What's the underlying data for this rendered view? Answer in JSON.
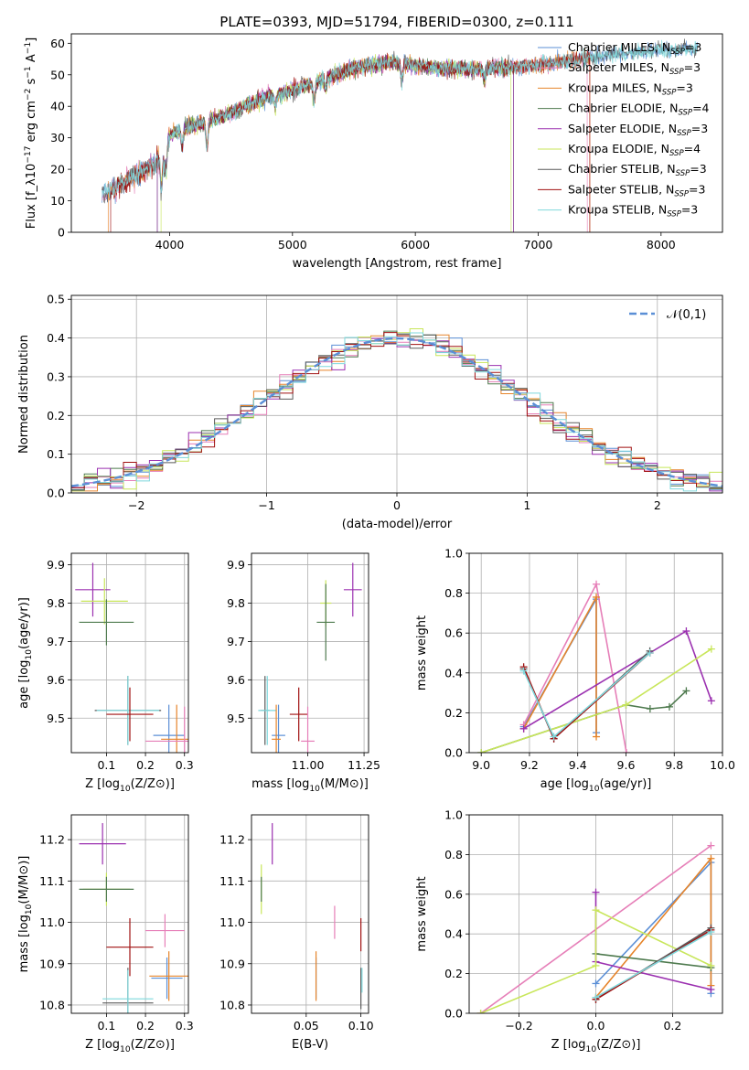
{
  "figure": {
    "title": "PLATE=0393, MJD=51794, FIBERID=0300, z=0.111"
  },
  "colors": {
    "Chabrier MILES": "#5b8fd6",
    "Salpeter MILES": "#e67fb8",
    "Kroupa MILES": "#e6842a",
    "Chabrier ELODIE": "#4e7a4e",
    "Salpeter ELODIE": "#9b30b0",
    "Kroupa ELODIE": "#c8e65a",
    "Chabrier STELIB": "#5a5a5a",
    "Salpeter STELIB": "#a01010",
    "Kroupa STELIB": "#7fd8dc",
    "gaussian": "#5b8fd6",
    "grid": "#b0b0b0"
  },
  "chart_data": [
    {
      "id": "spectrum",
      "type": "line",
      "title": "PLATE=0393, MJD=51794, FIBERID=0300, z=0.111",
      "xlabel": "wavelength [Angstrom, rest frame]",
      "ylabel": "Flux [f_λ10^-17 erg cm^-2 s^-1 A^-1]",
      "xlim": [
        3200,
        8500
      ],
      "ylim": [
        0,
        63
      ],
      "xticks": [
        4000,
        5000,
        6000,
        7000,
        8000
      ],
      "yticks": [
        0,
        10,
        20,
        30,
        40,
        50,
        60
      ],
      "grid": false,
      "legend_position": "upper-right",
      "continuum": {
        "x": [
          3450,
          3600,
          3800,
          3950,
          4000,
          4100,
          4300,
          4500,
          4800,
          5000,
          5200,
          5500,
          5800,
          6000,
          6200,
          6500,
          7000,
          7500,
          8000,
          8300
        ],
        "y": [
          12,
          15,
          20,
          24,
          31,
          33,
          35,
          38,
          43,
          45,
          48,
          52,
          54,
          53,
          52,
          52,
          53,
          56,
          58,
          58
        ]
      },
      "series": [
        {
          "name": "Chabrier MILES",
          "label": "Chabrier MILES, N",
          "sub": "SSP",
          "suffix": "=3",
          "xrange": [
            3450,
            8300
          ]
        },
        {
          "name": "Salpeter MILES",
          "label": "Salpeter MILES, N",
          "sub": "SSP",
          "suffix": "=3",
          "xrange": [
            3450,
            7400
          ]
        },
        {
          "name": "Kroupa MILES",
          "label": "Kroupa MILES, N",
          "sub": "SSP",
          "suffix": "=3",
          "xrange": [
            3500,
            7420
          ]
        },
        {
          "name": "Chabrier ELODIE",
          "label": "Chabrier ELODIE, N",
          "sub": "SSP",
          "suffix": "=4",
          "xrange": [
            3900,
            6800
          ]
        },
        {
          "name": "Salpeter ELODIE",
          "label": "Salpeter ELODIE, N",
          "sub": "SSP",
          "suffix": "=3",
          "xrange": [
            3900,
            6800
          ]
        },
        {
          "name": "Kroupa ELODIE",
          "label": "Kroupa ELODIE, N",
          "sub": "SSP",
          "suffix": "=4",
          "xrange": [
            3930,
            6780
          ]
        },
        {
          "name": "Chabrier STELIB",
          "label": "Chabrier STELIB, N",
          "sub": "SSP",
          "suffix": "=3",
          "xrange": [
            3450,
            8300
          ]
        },
        {
          "name": "Salpeter STELIB",
          "label": "Salpeter STELIB, N",
          "sub": "SSP",
          "suffix": "=3",
          "xrange": [
            3520,
            7420
          ]
        },
        {
          "name": "Kroupa STELIB",
          "label": "Kroupa STELIB, N",
          "sub": "SSP",
          "suffix": "=3",
          "xrange": [
            3450,
            8300
          ]
        }
      ]
    },
    {
      "id": "residuals",
      "type": "histogram",
      "xlabel": "(data-model)/error",
      "ylabel": "Normed distribution",
      "xlim": [
        -2.5,
        2.5
      ],
      "ylim": [
        0,
        0.51
      ],
      "xticks": [
        -2,
        -1,
        0,
        1,
        2
      ],
      "yticks": [
        0.0,
        0.1,
        0.2,
        0.3,
        0.4,
        0.5
      ],
      "grid": true,
      "legend_position": "upper-right",
      "bins": {
        "start": -2.5,
        "width": 0.1,
        "count": 50
      },
      "gaussian_label": "𝒩(0,1)"
    },
    {
      "id": "z-age",
      "type": "errorbar",
      "xlabel": "Z [log10(Z/Z⊙)]",
      "ylabel": "age  [log10(age/yr)]",
      "xlim": [
        0.01,
        0.31
      ],
      "ylim": [
        9.41,
        9.93
      ],
      "xticks": [
        0.1,
        0.2,
        0.3
      ],
      "yticks": [
        9.5,
        9.6,
        9.7,
        9.8,
        9.9
      ],
      "grid": true,
      "points": [
        {
          "series": "Salpeter ELODIE",
          "x": 0.065,
          "xerr": 0.045,
          "y": 9.835,
          "yerr": 0.07
        },
        {
          "series": "Kroupa ELODIE",
          "x": 0.095,
          "xerr": 0.06,
          "y": 9.805,
          "yerr": 0.06
        },
        {
          "series": "Chabrier ELODIE",
          "x": 0.1,
          "xerr": 0.07,
          "y": 9.75,
          "yerr": 0.06
        },
        {
          "series": "Chabrier STELIB",
          "x": 0.155,
          "xerr": 0.085,
          "y": 9.52,
          "yerr": 0.09
        },
        {
          "series": "Kroupa STELIB",
          "x": 0.155,
          "xerr": 0.08,
          "y": 9.52,
          "yerr": 0.09
        },
        {
          "series": "Salpeter STELIB",
          "x": 0.16,
          "xerr": 0.06,
          "y": 9.51,
          "yerr": 0.07
        },
        {
          "series": "Chabrier MILES",
          "x": 0.26,
          "xerr": 0.04,
          "y": 9.455,
          "yerr": 0.08
        },
        {
          "series": "Kroupa MILES",
          "x": 0.28,
          "xerr": 0.04,
          "y": 9.445,
          "yerr": 0.09
        },
        {
          "series": "Salpeter MILES",
          "x": 0.3,
          "xerr": 0.1,
          "y": 9.44,
          "yerr": 0.09
        }
      ]
    },
    {
      "id": "mass-age",
      "type": "errorbar",
      "xlabel": "mass [log10(M/M⊙)]",
      "ylabel": "",
      "xlim": [
        10.75,
        11.27
      ],
      "ylim": [
        9.41,
        9.93
      ],
      "xticks": [
        11.0,
        11.25
      ],
      "yticks": [
        9.5,
        9.6,
        9.7,
        9.8,
        9.9
      ],
      "grid": true,
      "points": [
        {
          "series": "Salpeter ELODIE",
          "x": 11.2,
          "xerr": 0.04,
          "y": 9.835,
          "yerr": 0.07
        },
        {
          "series": "Kroupa ELODIE",
          "x": 11.08,
          "xerr": 0.025,
          "y": 9.8,
          "yerr": 0.06
        },
        {
          "series": "Chabrier ELODIE",
          "x": 11.08,
          "xerr": 0.04,
          "y": 9.75,
          "yerr": 0.1
        },
        {
          "series": "Chabrier STELIB",
          "x": 10.81,
          "xerr": 0.02,
          "y": 9.52,
          "yerr": 0.09
        },
        {
          "series": "Kroupa STELIB",
          "x": 10.82,
          "xerr": 0.04,
          "y": 9.52,
          "yerr": 0.09
        },
        {
          "series": "Salpeter STELIB",
          "x": 10.96,
          "xerr": 0.04,
          "y": 9.51,
          "yerr": 0.07
        },
        {
          "series": "Chabrier MILES",
          "x": 10.87,
          "xerr": 0.03,
          "y": 9.455,
          "yerr": 0.08
        },
        {
          "series": "Kroupa MILES",
          "x": 10.86,
          "xerr": 0.02,
          "y": 9.445,
          "yerr": 0.09
        },
        {
          "series": "Salpeter MILES",
          "x": 11.0,
          "xerr": 0.03,
          "y": 9.44,
          "yerr": 0.09
        }
      ]
    },
    {
      "id": "age-weight",
      "type": "line",
      "xlabel": "age  [log10(age/yr)]",
      "ylabel": "mass weight",
      "xlim": [
        8.95,
        10.0
      ],
      "ylim": [
        0,
        1
      ],
      "xticks": [
        9.0,
        9.2,
        9.4,
        9.6,
        9.8,
        10.0
      ],
      "yticks": [
        0.0,
        0.2,
        0.4,
        0.6,
        0.8,
        1.0
      ],
      "grid": true,
      "series": [
        {
          "name": "Chabrier MILES",
          "x": [
            9.176,
            9.477,
            9.477
          ],
          "y": [
            0.13,
            0.77,
            0.1
          ]
        },
        {
          "name": "Salpeter MILES",
          "x": [
            9.176,
            9.477,
            9.602
          ],
          "y": [
            0.14,
            0.845,
            0.0
          ]
        },
        {
          "name": "Kroupa MILES",
          "x": [
            9.176,
            9.477,
            9.477
          ],
          "y": [
            0.12,
            0.78,
            0.08
          ]
        },
        {
          "name": "Chabrier ELODIE",
          "x": [
            9.0,
            9.6,
            9.7,
            9.78,
            9.85
          ],
          "y": [
            0.0,
            0.24,
            0.22,
            0.23,
            0.31
          ]
        },
        {
          "name": "Salpeter ELODIE",
          "x": [
            9.176,
            9.85,
            9.954
          ],
          "y": [
            0.12,
            0.61,
            0.26
          ]
        },
        {
          "name": "Kroupa ELODIE",
          "x": [
            9.0,
            9.6,
            9.954
          ],
          "y": [
            0.0,
            0.24,
            0.52
          ]
        },
        {
          "name": "Chabrier STELIB",
          "x": [
            9.176,
            9.301,
            9.699
          ],
          "y": [
            0.42,
            0.07,
            0.51
          ]
        },
        {
          "name": "Salpeter STELIB",
          "x": [
            9.176,
            9.301,
            9.699
          ],
          "y": [
            0.43,
            0.07,
            0.5
          ]
        },
        {
          "name": "Kroupa STELIB",
          "x": [
            9.176,
            9.301,
            9.699
          ],
          "y": [
            0.41,
            0.08,
            0.5
          ]
        }
      ]
    },
    {
      "id": "z-mass",
      "type": "errorbar",
      "xlabel": "Z [log10(Z/Z⊙)]",
      "ylabel": "mass [log10(M/M⊙)]",
      "xlim": [
        0.01,
        0.31
      ],
      "ylim": [
        10.78,
        11.26
      ],
      "xticks": [
        0.1,
        0.2,
        0.3
      ],
      "yticks": [
        10.8,
        10.9,
        11.0,
        11.1,
        11.2
      ],
      "grid": true,
      "points": [
        {
          "series": "Salpeter ELODIE",
          "x": 0.09,
          "xerr": 0.06,
          "y": 11.19,
          "yerr": 0.05
        },
        {
          "series": "Kroupa ELODIE",
          "x": 0.1,
          "xerr": 0.06,
          "y": 11.08,
          "yerr": 0.04
        },
        {
          "series": "Chabrier ELODIE",
          "x": 0.1,
          "xerr": 0.07,
          "y": 11.08,
          "yerr": 0.03
        },
        {
          "series": "Salpeter STELIB",
          "x": 0.16,
          "xerr": 0.06,
          "y": 10.94,
          "yerr": 0.07
        },
        {
          "series": "Chabrier STELIB",
          "x": 0.155,
          "xerr": 0.065,
          "y": 10.805,
          "yerr": 0.085
        },
        {
          "series": "Kroupa STELIB",
          "x": 0.155,
          "xerr": 0.065,
          "y": 10.815,
          "yerr": 0.07
        },
        {
          "series": "Chabrier MILES",
          "x": 0.255,
          "xerr": 0.04,
          "y": 10.865,
          "yerr": 0.05
        },
        {
          "series": "Kroupa MILES",
          "x": 0.26,
          "xerr": 0.05,
          "y": 10.87,
          "yerr": 0.06
        },
        {
          "series": "Salpeter MILES",
          "x": 0.25,
          "xerr": 0.05,
          "y": 10.98,
          "yerr": 0.04
        }
      ]
    },
    {
      "id": "ebv-mass",
      "type": "errorbar",
      "xlabel": "E(B-V)",
      "ylabel": "",
      "xlim": [
        0.0,
        0.107
      ],
      "ylim": [
        10.78,
        11.26
      ],
      "xticks": [
        0.05,
        0.1
      ],
      "yticks": [
        10.8,
        10.9,
        11.0,
        11.1,
        11.2
      ],
      "grid": true,
      "points": [
        {
          "series": "Salpeter ELODIE",
          "x": 0.019,
          "xerr": 0,
          "y": 11.19,
          "yerr": 0.05
        },
        {
          "series": "Kroupa ELODIE",
          "x": 0.009,
          "xerr": 0,
          "y": 11.08,
          "yerr": 0.06
        },
        {
          "series": "Chabrier ELODIE",
          "x": 0.009,
          "xerr": 0,
          "y": 11.08,
          "yerr": 0.03
        },
        {
          "series": "Salpeter MILES",
          "x": 0.076,
          "xerr": 0,
          "y": 11.0,
          "yerr": 0.04
        },
        {
          "series": "Chabrier MILES",
          "x": 0.059,
          "xerr": 0,
          "y": 10.865,
          "yerr": 0.05
        },
        {
          "series": "Kroupa MILES",
          "x": 0.059,
          "xerr": 0,
          "y": 10.87,
          "yerr": 0.06
        },
        {
          "series": "Salpeter STELIB",
          "x": 0.1,
          "xerr": 0,
          "y": 10.97,
          "yerr": 0.04
        },
        {
          "series": "Chabrier STELIB",
          "x": 0.1,
          "xerr": 0,
          "y": 10.84,
          "yerr": 0.05
        },
        {
          "series": "Kroupa STELIB",
          "x": 0.101,
          "xerr": 0,
          "y": 10.86,
          "yerr": 0.03
        }
      ]
    },
    {
      "id": "z-weight",
      "type": "line",
      "xlabel": "Z [log10(Z/Z⊙)]",
      "ylabel": "mass weight",
      "xlim": [
        -0.33,
        0.33
      ],
      "ylim": [
        0,
        1
      ],
      "xticks": [
        -0.2,
        0.0,
        0.2
      ],
      "yticks": [
        0.0,
        0.2,
        0.4,
        0.6,
        0.8,
        1.0
      ],
      "grid": true,
      "series": [
        {
          "name": "Chabrier MILES",
          "x": [
            0.0,
            0.3,
            0.3
          ],
          "y": [
            0.15,
            0.76,
            0.1
          ]
        },
        {
          "name": "Salpeter MILES",
          "x": [
            -0.3,
            0.3
          ],
          "y": [
            0.0,
            0.845
          ]
        },
        {
          "name": "Kroupa MILES",
          "x": [
            0.0,
            0.3,
            0.3
          ],
          "y": [
            0.08,
            0.78,
            0.14
          ]
        },
        {
          "name": "Chabrier ELODIE",
          "x": [
            0.0,
            0.3
          ],
          "y": [
            0.3,
            0.23
          ]
        },
        {
          "name": "Salpeter ELODIE",
          "x": [
            0.0,
            0.0,
            0.3
          ],
          "y": [
            0.61,
            0.26,
            0.12
          ]
        },
        {
          "name": "Kroupa ELODIE",
          "x": [
            -0.3,
            0.0,
            0.0,
            0.3
          ],
          "y": [
            0.0,
            0.24,
            0.52,
            0.24
          ]
        },
        {
          "name": "Chabrier STELIB",
          "x": [
            0.0,
            0.3
          ],
          "y": [
            0.07,
            0.43
          ]
        },
        {
          "name": "Salpeter STELIB",
          "x": [
            0.0,
            0.3
          ],
          "y": [
            0.07,
            0.42
          ]
        },
        {
          "name": "Kroupa STELIB",
          "x": [
            0.0,
            0.3
          ],
          "y": [
            0.08,
            0.41
          ]
        }
      ]
    }
  ]
}
